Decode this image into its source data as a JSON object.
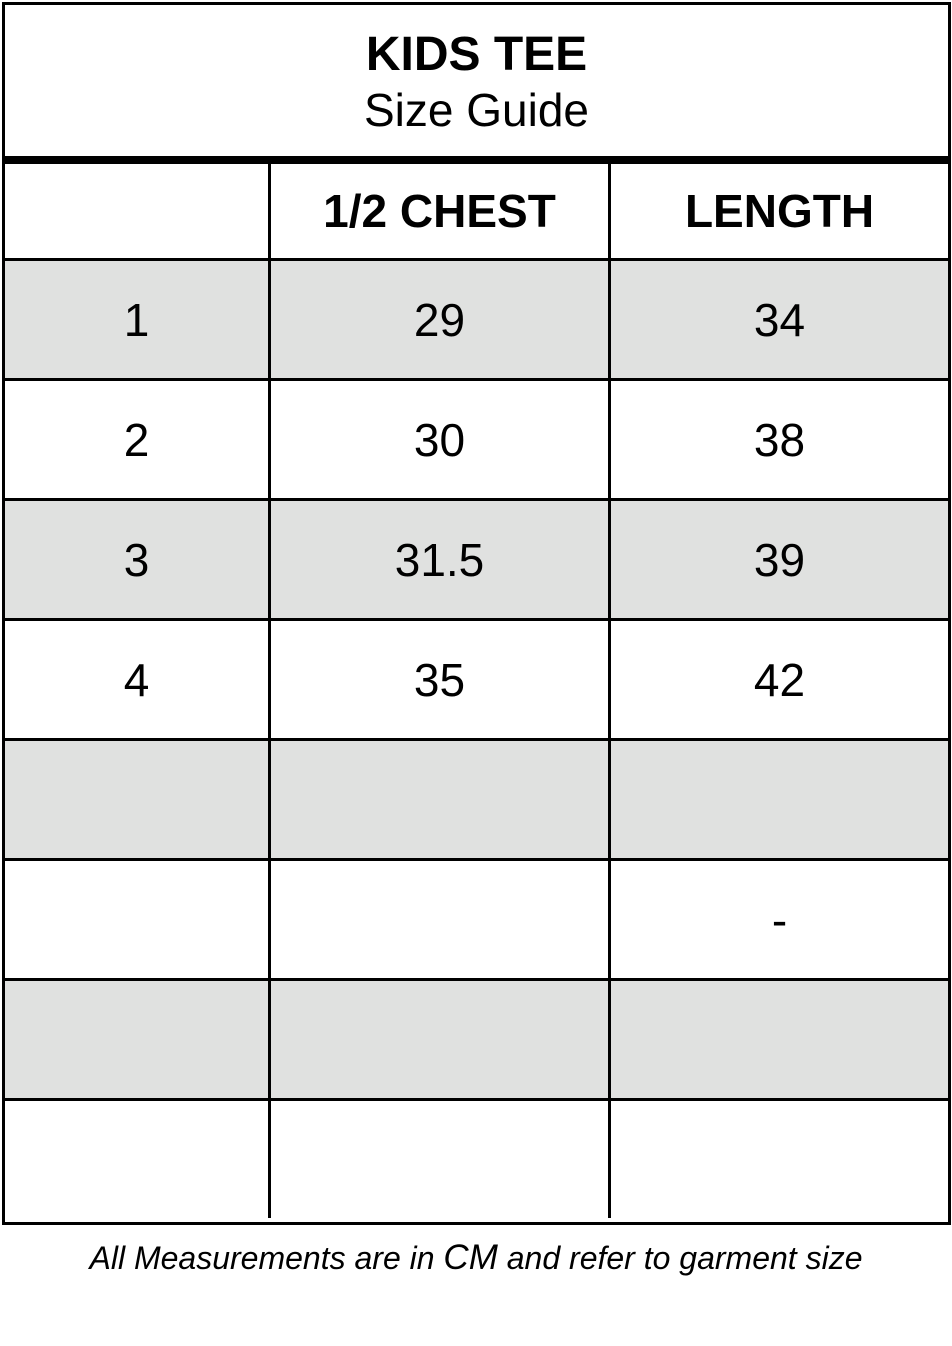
{
  "title": "KIDS TEE",
  "subtitle": "Size Guide",
  "columns": [
    "",
    "1/2 CHEST",
    "LENGTH"
  ],
  "rows": [
    [
      "1",
      "29",
      "34"
    ],
    [
      "2",
      "30",
      "38"
    ],
    [
      "3",
      "31.5",
      "39"
    ],
    [
      "4",
      "35",
      "42"
    ],
    [
      "",
      "",
      ""
    ],
    [
      "",
      "",
      "-"
    ],
    [
      "",
      "",
      ""
    ],
    [
      "",
      "",
      ""
    ]
  ],
  "shade_color": "#e0e1e0",
  "note": {
    "before": "All Measurements are in ",
    "unit": "CM",
    "after": " and refer to garment size"
  }
}
